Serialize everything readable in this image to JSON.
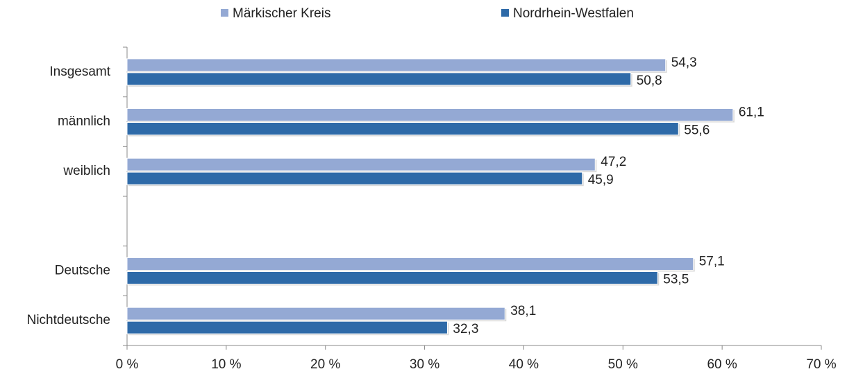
{
  "chart_data": {
    "type": "hbar",
    "categories": [
      "Insgesamt",
      "männlich",
      "weiblich",
      null,
      "Deutsche",
      "Nichtdeutsche"
    ],
    "series": [
      {
        "name": "Märkischer Kreis",
        "color": "#94a9d4",
        "values": [
          54.3,
          61.1,
          47.2,
          null,
          57.1,
          38.1
        ],
        "value_labels": [
          "54,3",
          "61,1",
          "47,2",
          null,
          "57,1",
          "38,1"
        ]
      },
      {
        "name": "Nordrhein-Westfalen",
        "color": "#2e6aa8",
        "values": [
          50.8,
          55.6,
          45.9,
          null,
          53.5,
          32.3
        ],
        "value_labels": [
          "50,8",
          "55,6",
          "45,9",
          null,
          "53,5",
          "32,3"
        ]
      }
    ],
    "xlim": [
      0,
      70
    ],
    "xticks": [
      {
        "value": 0,
        "label": "0 %"
      },
      {
        "value": 10,
        "label": "10 %"
      },
      {
        "value": 20,
        "label": "20 %"
      },
      {
        "value": 30,
        "label": "30 %"
      },
      {
        "value": 40,
        "label": "40 %"
      },
      {
        "value": 50,
        "label": "50 %"
      },
      {
        "value": 60,
        "label": "60 %"
      },
      {
        "value": 70,
        "label": "70 %"
      }
    ],
    "legend": "top"
  }
}
